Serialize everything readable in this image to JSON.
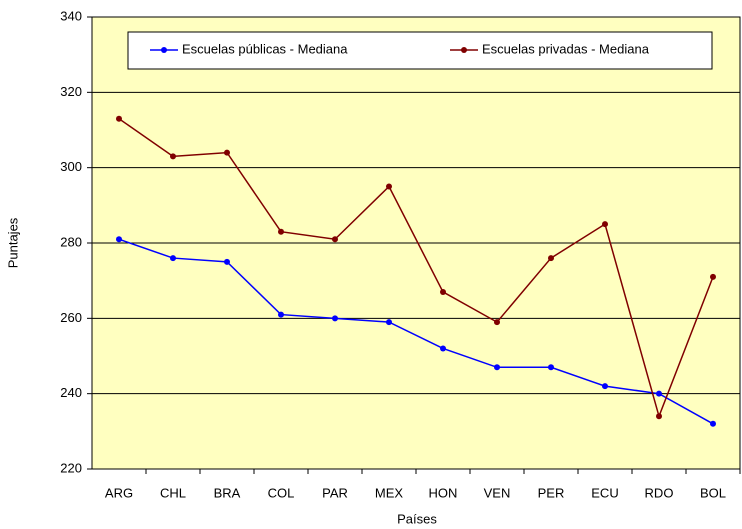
{
  "chart_data": {
    "type": "line",
    "x_label": "Países",
    "y_label": "Puntajes",
    "categories": [
      "ARG",
      "CHL",
      "BRA",
      "COL",
      "PAR",
      "MEX",
      "HON",
      "VEN",
      "PER",
      "ECU",
      "RDO",
      "BOL"
    ],
    "series": [
      {
        "name": "Escuelas públicas - Mediana",
        "color": "#0000ff",
        "values": [
          281,
          276,
          275,
          261,
          260,
          259,
          252,
          247,
          247,
          242,
          240,
          232
        ]
      },
      {
        "name": "Escuelas privadas - Mediana",
        "color": "#800000",
        "values": [
          313,
          303,
          304,
          283,
          281,
          295,
          267,
          259,
          276,
          285,
          234,
          271
        ]
      }
    ],
    "ylim": [
      220,
      340
    ],
    "yticks": [
      220,
      240,
      260,
      280,
      300,
      320,
      340
    ],
    "grid": true,
    "legend": "top",
    "plot_background": "#ffffc0"
  }
}
